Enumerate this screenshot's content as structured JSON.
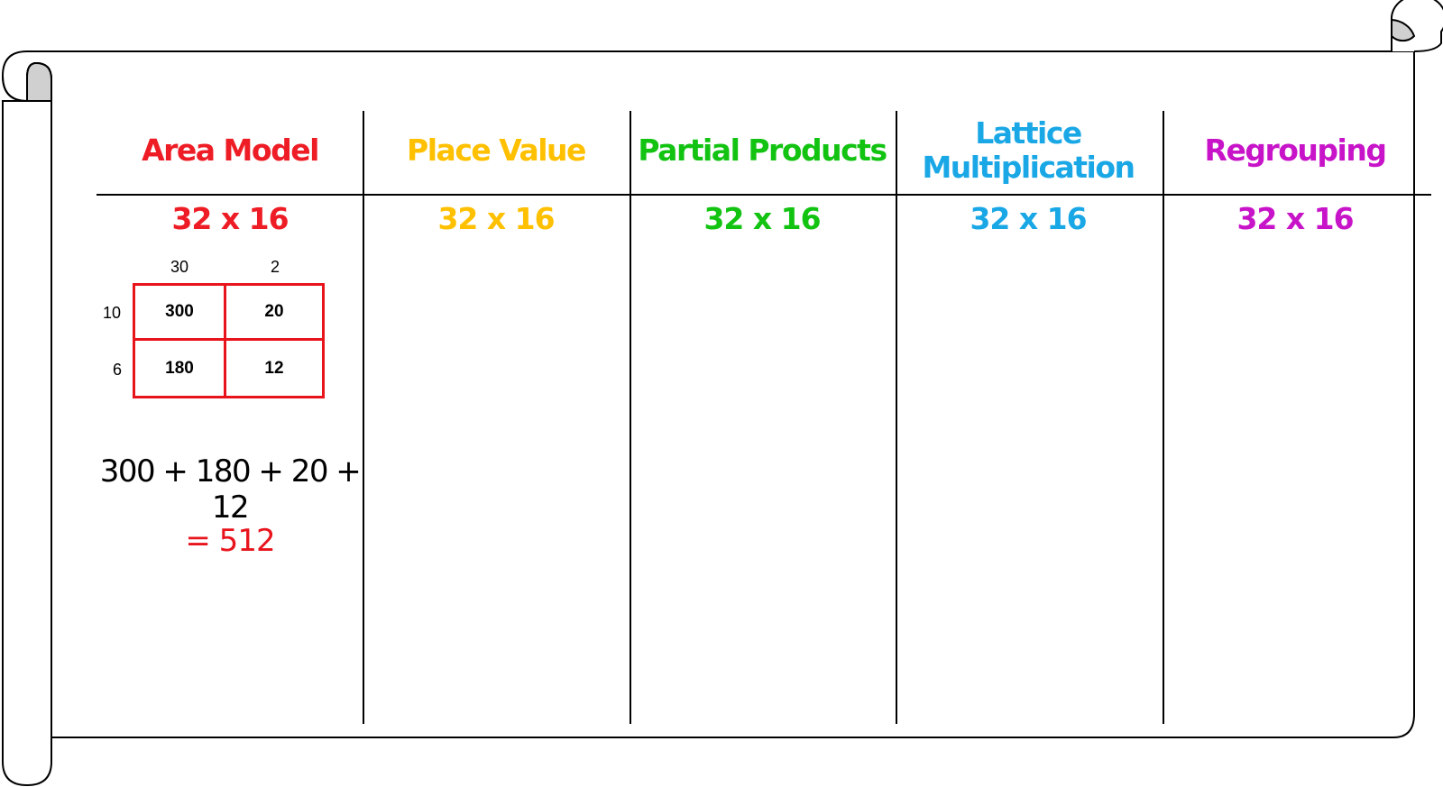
{
  "colors": {
    "area_model": "#ee1c25",
    "place_value": "#ffc000",
    "partial_products": "#12c312",
    "lattice": "#1aa7e6",
    "regrouping": "#c814c8",
    "grid_border": "#e8141c"
  },
  "columns": [
    {
      "heading": "Area Model",
      "problem": "32 x 16"
    },
    {
      "heading": "Place Value",
      "problem": "32 x 16"
    },
    {
      "heading": "Partial Products",
      "problem": "32 x 16"
    },
    {
      "heading_line1": "Lattice",
      "heading_line2": "Multiplication",
      "problem": "32 x 16"
    },
    {
      "heading": "Regrouping",
      "problem": "32 x 16"
    }
  ],
  "area_model": {
    "top_labels": [
      "30",
      "2"
    ],
    "side_labels": [
      "10",
      "6"
    ],
    "cells": [
      [
        "300",
        "20"
      ],
      [
        "180",
        "12"
      ]
    ],
    "sum": "300 + 180 + 20 + 12",
    "result": "= 512"
  }
}
